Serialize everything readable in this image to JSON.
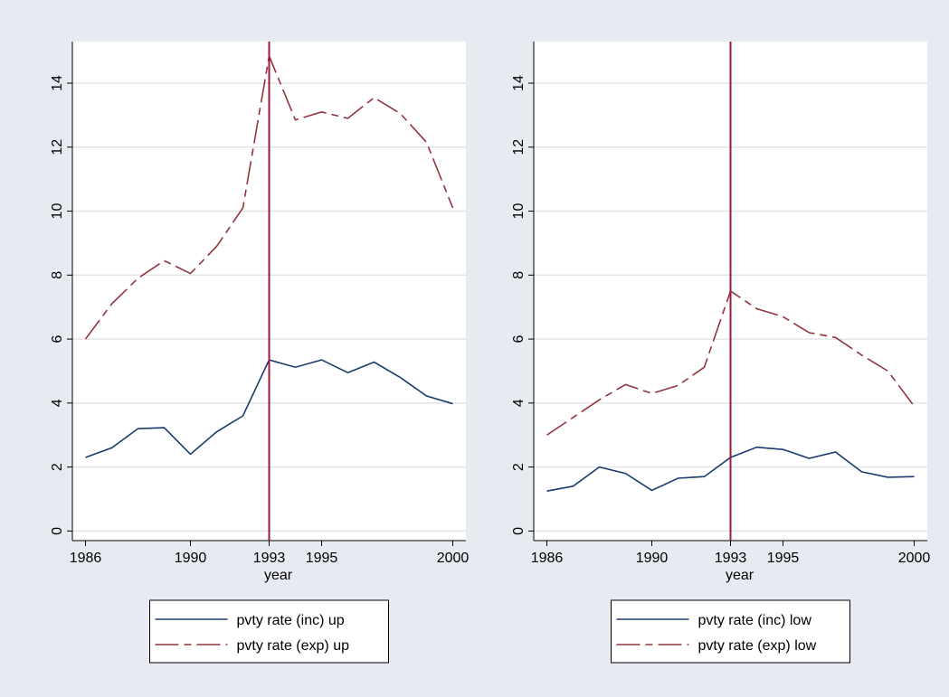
{
  "chart_data": [
    {
      "type": "line",
      "x_label": "year",
      "x": [
        1986,
        1987,
        1988,
        1989,
        1990,
        1991,
        1992,
        1993,
        1994,
        1995,
        1996,
        1997,
        1998,
        1999,
        2000
      ],
      "series": [
        {
          "name": "pvty rate (inc) up",
          "color": "#1a3b6e",
          "style": "solid",
          "values": [
            2.3,
            2.6,
            3.2,
            3.23,
            2.4,
            3.1,
            3.6,
            5.35,
            5.12,
            5.35,
            4.95,
            5.28,
            4.8,
            4.22,
            3.98
          ]
        },
        {
          "name": "pvty rate (exp) up",
          "color": "#90353b",
          "style": "dashed",
          "values": [
            6.0,
            7.1,
            7.9,
            8.45,
            8.05,
            8.9,
            10.1,
            14.85,
            12.85,
            13.1,
            12.9,
            13.55,
            13.05,
            12.15,
            10.1
          ]
        }
      ],
      "xline": 1993,
      "xline_color": "#a0183a",
      "xlim": [
        1985.5,
        2000.5
      ],
      "xticks": [
        1986,
        1990,
        1993,
        1995,
        2000
      ],
      "ylim": [
        -0.3,
        15.3
      ],
      "yticks": [
        0,
        2,
        4,
        6,
        8,
        10,
        12,
        14
      ],
      "grid": true,
      "legend": "bottom"
    },
    {
      "type": "line",
      "x_label": "year",
      "x": [
        1986,
        1987,
        1988,
        1989,
        1990,
        1991,
        1992,
        1993,
        1994,
        1995,
        1996,
        1997,
        1998,
        1999,
        2000
      ],
      "series": [
        {
          "name": "pvty rate (inc) low",
          "color": "#1a3b6e",
          "style": "solid",
          "values": [
            1.25,
            1.4,
            2.0,
            1.8,
            1.27,
            1.65,
            1.7,
            2.3,
            2.62,
            2.55,
            2.27,
            2.47,
            1.85,
            1.68,
            1.7
          ]
        },
        {
          "name": "pvty rate (exp) low",
          "color": "#90353b",
          "style": "dashed",
          "values": [
            3.0,
            3.55,
            4.1,
            4.58,
            4.3,
            4.55,
            5.12,
            7.5,
            6.95,
            6.7,
            6.2,
            6.05,
            5.5,
            5.0,
            3.9
          ]
        }
      ],
      "xline": 1993,
      "xline_color": "#a0183a",
      "xlim": [
        1985.5,
        2000.5
      ],
      "xticks": [
        1986,
        1990,
        1993,
        1995,
        2000
      ],
      "ylim": [
        -0.3,
        15.3
      ],
      "yticks": [
        0,
        2,
        4,
        6,
        8,
        10,
        12,
        14
      ],
      "grid": true,
      "legend": "bottom"
    }
  ]
}
